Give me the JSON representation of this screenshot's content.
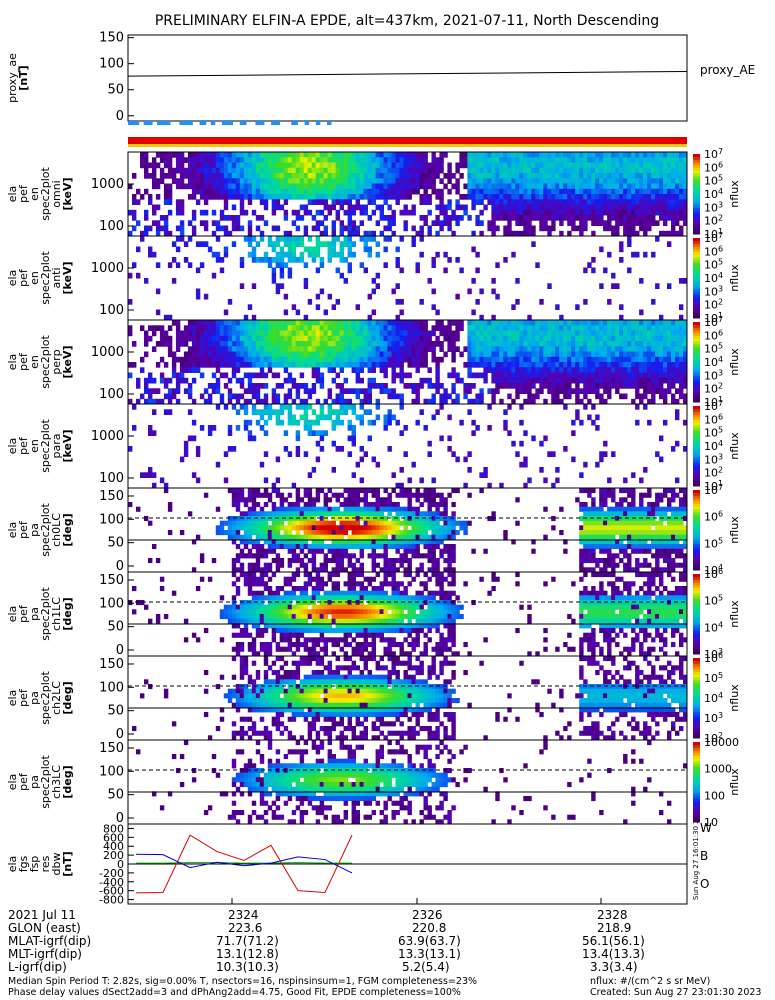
{
  "title": "PRELIMINARY ELFIN-A EPDE, alt=437km, 2021-07-11, North Descending",
  "side_label": "Sun Aug 27 16:01:30 2023",
  "chart_data": [
    {
      "type": "line",
      "panel": "proxy_ae",
      "ylabel": [
        "proxy_ae",
        "[nT]"
      ],
      "ylim": [
        -10,
        155
      ],
      "yticks": [
        "0",
        "50",
        "100",
        "150"
      ],
      "legend": "proxy_AE",
      "series": [
        {
          "name": "proxy_AE",
          "x": [
            0,
            1
          ],
          "y": [
            76,
            85
          ]
        }
      ]
    },
    {
      "type": "bar",
      "panel": "status_bars",
      "segments": [
        [
          0.0,
          0.05
        ],
        [
          0.07,
          0.11
        ],
        [
          0.13,
          0.19
        ],
        [
          0.23,
          0.29
        ],
        [
          0.32,
          0.35
        ],
        [
          0.37,
          0.39
        ],
        [
          0.42,
          0.47
        ],
        [
          0.5,
          0.53
        ],
        [
          0.57,
          0.61
        ],
        [
          0.64,
          0.68
        ],
        [
          0.73,
          0.76
        ],
        [
          0.79,
          0.81
        ],
        [
          0.84,
          0.86
        ],
        [
          0.89,
          0.91
        ]
      ]
    },
    {
      "type": "heatmap",
      "panel": "energy_omni",
      "ylabel": [
        "ela",
        "pef",
        "en",
        "spec2plot",
        "omni",
        "[keV]"
      ],
      "yticks": [
        "100",
        "1000"
      ],
      "cbar_ticks": [
        "10^1",
        "10^2",
        "10^3",
        "10^4",
        "10^5",
        "10^6",
        "10^7"
      ],
      "cbar_label": "nflux",
      "variant": "omni"
    },
    {
      "type": "heatmap",
      "panel": "energy_anti",
      "ylabel": [
        "ela",
        "pef",
        "en",
        "spec2plot",
        "anti",
        "[keV]"
      ],
      "yticks": [
        "100",
        "1000"
      ],
      "cbar_ticks": [
        "10^1",
        "10^2",
        "10^3",
        "10^4",
        "10^5",
        "10^6",
        "10^7"
      ],
      "cbar_label": "nflux",
      "variant": "sparse"
    },
    {
      "type": "heatmap",
      "panel": "energy_perp",
      "ylabel": [
        "ela",
        "pef",
        "en",
        "spec2plot",
        "perp",
        "[keV]"
      ],
      "yticks": [
        "100",
        "1000"
      ],
      "cbar_ticks": [
        "10^1",
        "10^2",
        "10^3",
        "10^4",
        "10^5",
        "10^6",
        "10^7"
      ],
      "cbar_label": "nflux",
      "variant": "omni"
    },
    {
      "type": "heatmap",
      "panel": "energy_para",
      "ylabel": [
        "ela",
        "pef",
        "en",
        "spec2plot",
        "para",
        "[keV]"
      ],
      "yticks": [
        "100",
        "1000"
      ],
      "cbar_ticks": [
        "10^1",
        "10^2",
        "10^3",
        "10^4",
        "10^5",
        "10^6",
        "10^7"
      ],
      "cbar_label": "nflux",
      "variant": "sparse"
    },
    {
      "type": "heatmap",
      "panel": "pa_ch0",
      "ylabel": [
        "ela",
        "pef",
        "pa",
        "spec2plot",
        "ch0LC",
        "[deg]"
      ],
      "yticks": [
        "0",
        "50",
        "100",
        "150"
      ],
      "cbar_ticks": [
        "10^4",
        "10^5",
        "10^6",
        "10^7"
      ],
      "cbar_label": "nflux",
      "variant": "pa",
      "strength": 1.0
    },
    {
      "type": "heatmap",
      "panel": "pa_ch1",
      "ylabel": [
        "ela",
        "pef",
        "pa",
        "spec2plot",
        "ch1LC",
        "[deg]"
      ],
      "yticks": [
        "0",
        "50",
        "100",
        "150"
      ],
      "cbar_ticks": [
        "10^3",
        "10^4",
        "10^5",
        "10^6"
      ],
      "cbar_label": "nflux",
      "variant": "pa",
      "strength": 0.85
    },
    {
      "type": "heatmap",
      "panel": "pa_ch2",
      "ylabel": [
        "ela",
        "pef",
        "pa",
        "spec2plot",
        "ch2LC",
        "[deg]"
      ],
      "yticks": [
        "0",
        "50",
        "100",
        "150"
      ],
      "cbar_ticks": [
        "10^2",
        "10^3",
        "10^4",
        "10^5",
        "10^6"
      ],
      "cbar_label": "nflux",
      "variant": "pa",
      "strength": 0.6
    },
    {
      "type": "heatmap",
      "panel": "pa_ch3",
      "ylabel": [
        "ela",
        "pef",
        "pa",
        "spec2plot",
        "ch3LC",
        "[deg]"
      ],
      "yticks": [
        "0",
        "50",
        "100",
        "150"
      ],
      "cbar_ticks": [
        "10",
        "100",
        "1000",
        "10000"
      ],
      "cbar_label": "nflux",
      "variant": "pa",
      "strength": 0.35
    },
    {
      "type": "line",
      "panel": "fgs_res",
      "ylabel": [
        "ela",
        "fgs",
        "fsp",
        "res",
        "dbw",
        "[nT]"
      ],
      "ylim": [
        -900,
        900
      ],
      "yticks": [
        "-800",
        "-600",
        "-400",
        "-200",
        "0",
        "200",
        "400",
        "600",
        "800"
      ],
      "legend_letters": [
        "W",
        "B",
        "O"
      ],
      "series": [
        {
          "name": "W",
          "x": [
            0,
            1,
            2,
            3,
            4,
            5,
            6,
            7,
            8
          ],
          "y": [
            -650,
            -640,
            650,
            280,
            80,
            420,
            -600,
            -640,
            650
          ]
        },
        {
          "name": "B",
          "x": [
            0,
            1,
            2,
            3,
            4,
            5,
            6,
            7,
            8
          ],
          "y": [
            20,
            20,
            30,
            30,
            20,
            20,
            30,
            20,
            20
          ]
        },
        {
          "name": "O",
          "x": [
            0,
            1,
            2,
            3,
            4,
            5,
            6,
            7,
            8
          ],
          "y": [
            220,
            210,
            -80,
            40,
            -40,
            20,
            160,
            100,
            -200
          ]
        }
      ]
    }
  ],
  "x_axis": {
    "rows": [
      "2021 Jul 11",
      "GLON (east)",
      "MLAT-igrf(dip)",
      "MLT-igrf(dip)",
      "L-igrf(dip)"
    ],
    "ticks": [
      {
        "label": "2324",
        "vals": [
          "223.6",
          "71.7(71.2)",
          "13.1(12.8)",
          "10.3(10.3)"
        ]
      },
      {
        "label": "2326",
        "vals": [
          "220.8",
          "63.9(63.7)",
          "13.3(13.1)",
          "5.2(5.4)"
        ]
      },
      {
        "label": "2328",
        "vals": [
          "218.9",
          "56.1(56.1)",
          "13.4(13.3)",
          "3.3(3.4)"
        ]
      }
    ]
  },
  "footer": {
    "left1": "Median Spin Period T: 2.82s, sig=0.00% T, nsectors=16, nspinsinsum=1, FGM completeness=23%",
    "left2": "Phase delay values dSect2add=3 and dPhAng2add=4.75, Good Fit, EPDE completeness=100%",
    "right1": "nflux: #/(cm^2 s sr MeV)",
    "right2": "Created: Sun Aug 27 23:01:30 2023"
  }
}
